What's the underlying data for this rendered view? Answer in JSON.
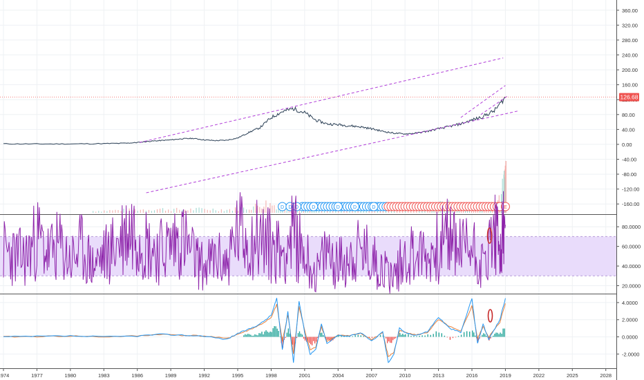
{
  "colors": {
    "price_line": "#2a3f55",
    "trendline": "#b03cd8",
    "last_price": "#ef5350",
    "rsi_line": "#8e24aa",
    "rsi_band": "#e9dcfb",
    "macd_line": "#2196f3",
    "signal_line": "#e8803a",
    "hist_pos": "#26a69a",
    "hist_neg": "#ef5350",
    "earnings": "#ef5350",
    "dividends": "#2196f3",
    "annotation": "#c62828",
    "grid": "#eef1f4",
    "axis_text": "#333333"
  },
  "x_axis": {
    "ticks": [
      "1974",
      "1977",
      "1980",
      "1983",
      "1986",
      "1989",
      "1992",
      "1995",
      "1998",
      "2001",
      "2004",
      "2007",
      "2010",
      "2013",
      "2016",
      "2019",
      "2022",
      "2025",
      "2028"
    ]
  },
  "chart_data": [
    {
      "type": "line",
      "panel": "price",
      "title": "",
      "y_ticks": [
        "360.00",
        "320.00",
        "280.00",
        "240.00",
        "200.00",
        "160.00",
        "120.00",
        "80.00",
        "40.00",
        "0.00",
        "-40.00",
        "-80.00",
        "-120.00",
        "-160.00"
      ],
      "ylim": [
        -180,
        380
      ],
      "last_price": "126.68",
      "last_value": 126.68,
      "series": [
        {
          "x": [
            1974,
            1977,
            1980,
            1983,
            1985,
            1986,
            1987,
            1988,
            1989,
            1990,
            1991,
            1992,
            1993,
            1994,
            1995,
            1996,
            1997,
            1998,
            1999,
            2000,
            2001,
            2002,
            2003,
            2004,
            2005,
            2006,
            2007,
            2008,
            2009,
            2010,
            2011,
            2012,
            2013,
            2014,
            2015,
            2016,
            2017,
            2018,
            2019
          ],
          "y": [
            1.5,
            1.0,
            1.2,
            2.0,
            3.0,
            5.0,
            8.0,
            10.0,
            12.0,
            15.0,
            16.0,
            12.0,
            10.0,
            11.0,
            17.0,
            32.0,
            45.0,
            72.0,
            88.0,
            96.0,
            85.0,
            65.0,
            55.0,
            53.0,
            50.0,
            47.0,
            42.0,
            35.0,
            30.0,
            28.0,
            30.0,
            35.0,
            42.0,
            48.0,
            55.0,
            65.0,
            75.0,
            90.0,
            126.68
          ]
        }
      ],
      "trendlines": [
        {
          "x": [
            1986.2,
            2018.8
          ],
          "y": [
            5,
            232
          ]
        },
        {
          "x": [
            1986.8,
            2020.2
          ],
          "y": [
            -130,
            90
          ]
        },
        {
          "x": [
            2015.0,
            2019.0
          ],
          "y": [
            72,
            158
          ]
        },
        {
          "x": [
            2016.8,
            2019.2
          ],
          "y": [
            80,
            130
          ]
        }
      ],
      "event_markers": {
        "dividend_label": "D",
        "earnings_label": "E",
        "dividends_x": [
          1999.0,
          1999.7,
          2000.3,
          2001.8,
          2004.0,
          2005.5,
          2007.2
        ],
        "dividend_run": {
          "from": 2000.8,
          "to": 2008.3,
          "step": 0.25
        },
        "earnings_run": {
          "from": 2008.5,
          "to": 2018.6,
          "step": 0.25
        },
        "earnings_x": [
          2019.0
        ]
      },
      "volume": {
        "x": [
          1982,
          1984,
          1986,
          1988,
          1990,
          1992,
          1994,
          1996,
          1997.5,
          1999,
          2000.5,
          2002,
          2004,
          2006,
          2008,
          2010,
          2012,
          2013.5,
          2015,
          2016.5,
          2018,
          2018.8,
          2019
        ],
        "v": [
          3,
          4,
          5,
          6,
          5,
          6,
          5,
          8,
          15,
          10,
          14,
          8,
          7,
          8,
          9,
          8,
          7,
          15,
          9,
          12,
          10,
          40,
          75
        ]
      }
    },
    {
      "type": "line",
      "panel": "rsi",
      "title": "",
      "y_ticks": [
        "80.0000",
        "60.0000",
        "40.0000",
        "20.0000"
      ],
      "ylim": [
        14,
        90
      ],
      "band": [
        30,
        70
      ],
      "series": [
        {
          "x": [
            1974,
            1975,
            1976,
            1977,
            1978,
            1979,
            1980,
            1981,
            1982,
            1983,
            1984,
            1985,
            1986,
            1987,
            1988,
            1989,
            1990,
            1991,
            1992,
            1993,
            1994,
            1995,
            1996,
            1997,
            1998,
            1999,
            2000,
            2001,
            2002,
            2003,
            2004,
            2005,
            2006,
            2007,
            2008,
            2009,
            2010,
            2011,
            2012,
            2013,
            2014,
            2015,
            2016,
            2017,
            2018,
            2018.5,
            2019
          ],
          "y": [
            55,
            50,
            48,
            70,
            52,
            60,
            45,
            58,
            40,
            50,
            60,
            75,
            80,
            60,
            55,
            62,
            70,
            50,
            38,
            48,
            42,
            75,
            65,
            70,
            60,
            55,
            72,
            52,
            30,
            55,
            42,
            50,
            55,
            48,
            38,
            30,
            50,
            55,
            48,
            60,
            70,
            58,
            62,
            40,
            75,
            55,
            82
          ]
        }
      ]
    },
    {
      "type": "line",
      "panel": "macd",
      "title": "",
      "y_ticks": [
        "4.0000",
        "2.0000",
        "0.0000",
        "-2.0000"
      ],
      "ylim": [
        -3.5,
        4.8
      ],
      "series": [
        {
          "name": "macd",
          "x": [
            1974,
            1977,
            1980,
            1983,
            1986,
            1988,
            1990,
            1992,
            1994,
            1995,
            1996,
            1997,
            1998,
            1998.5,
            1999,
            1999.5,
            2000,
            2000.5,
            2001,
            2001.5,
            2002,
            2002.5,
            2003,
            2004,
            2005,
            2006,
            2007,
            2008,
            2008.5,
            2009,
            2009.5,
            2010,
            2011,
            2012,
            2013,
            2014,
            2015,
            2016,
            2016.5,
            2017,
            2017.5,
            2018,
            2018.5,
            2019
          ],
          "y": [
            0,
            0.05,
            0.1,
            0,
            0.1,
            0.3,
            0.2,
            0.1,
            -0.3,
            0.4,
            0.9,
            1.5,
            2.5,
            4.5,
            -1.5,
            3.0,
            -3.0,
            4.2,
            0.5,
            -2.0,
            -1.5,
            1.5,
            -0.8,
            0.2,
            0.1,
            0.5,
            -0.5,
            0.6,
            -3.0,
            -2.0,
            1.0,
            0.5,
            0.2,
            0.6,
            2.3,
            1.0,
            0.5,
            4.5,
            -0.8,
            1.5,
            -0.3,
            0.8,
            2.0,
            4.5
          ]
        },
        {
          "name": "signal",
          "x": [
            1974,
            1977,
            1980,
            1983,
            1986,
            1988,
            1990,
            1992,
            1994,
            1995,
            1996,
            1997,
            1998,
            1998.5,
            1999,
            1999.5,
            2000,
            2000.5,
            2001,
            2001.5,
            2002,
            2002.5,
            2003,
            2004,
            2005,
            2006,
            2007,
            2008,
            2008.5,
            2009,
            2009.5,
            2010,
            2011,
            2012,
            2013,
            2014,
            2015,
            2016,
            2016.5,
            2017,
            2017.5,
            2018,
            2018.5,
            2019
          ],
          "y": [
            0,
            0.05,
            0.1,
            0,
            0.1,
            0.3,
            0.2,
            0.1,
            -0.2,
            0.3,
            0.8,
            1.4,
            2.2,
            3.8,
            -0.5,
            2.6,
            -2.0,
            3.5,
            0.8,
            -1.5,
            -1.2,
            1.2,
            -0.5,
            0.2,
            0.1,
            0.4,
            -0.3,
            0.5,
            -2.3,
            -1.8,
            0.7,
            0.6,
            0.2,
            0.5,
            2.0,
            1.2,
            0.6,
            3.6,
            -0.2,
            1.2,
            0.0,
            0.8,
            1.7,
            3.9
          ]
        }
      ],
      "histogram": {
        "x": [
          1995.5,
          1996,
          1996.5,
          1997,
          1997.5,
          1998,
          1998.5,
          1999,
          1999.5,
          2000,
          2000.5,
          2001,
          2001.5,
          2002,
          2002.5,
          2003,
          2003.5,
          2004,
          2005,
          2006,
          2007,
          2008,
          2008.5,
          2009,
          2009.5,
          2010,
          2011,
          2012,
          2013,
          2014,
          2015,
          2016,
          2016.5,
          2017,
          2017.5,
          2018,
          2018.5,
          2019
        ],
        "y": [
          0.2,
          0.3,
          0.2,
          0.4,
          0.6,
          0.8,
          1.0,
          -1.0,
          0.8,
          -1.2,
          1.0,
          -0.6,
          -0.8,
          -0.5,
          0.6,
          -0.6,
          -0.3,
          0.2,
          0.1,
          0.2,
          -0.2,
          0.3,
          -0.9,
          -0.4,
          0.5,
          0.3,
          0.1,
          0.2,
          0.6,
          -0.3,
          0.2,
          1.0,
          -0.6,
          0.5,
          -0.3,
          0.3,
          0.5,
          1.2
        ]
      }
    }
  ]
}
